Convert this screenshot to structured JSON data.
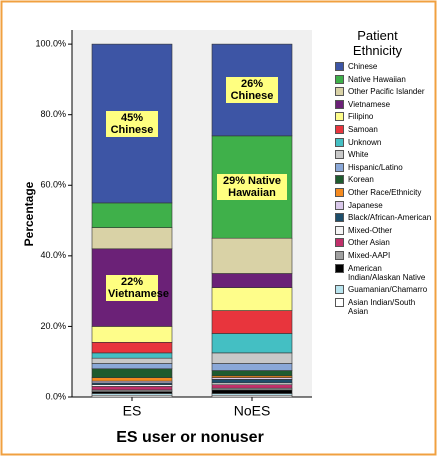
{
  "chart_data": {
    "type": "stacked_bar",
    "xlabel": "ES user or nonuser",
    "ylabel": "Percentage",
    "legend_title": "Patient Ethnicity",
    "legend_position": "right",
    "categories": [
      "ES",
      "NoES"
    ],
    "ylim": [
      0,
      104
    ],
    "yticks": [
      {
        "value": 0,
        "label": "0.0%"
      },
      {
        "value": 20,
        "label": "20.0%"
      },
      {
        "value": 40,
        "label": "40.0%"
      },
      {
        "value": 60,
        "label": "60.0%"
      },
      {
        "value": 80,
        "label": "80.0%"
      },
      {
        "value": 100,
        "label": "100.0%"
      }
    ],
    "series": [
      {
        "name": "Chinese",
        "color": "#3d55a5",
        "values": [
          45,
          26
        ],
        "value_labels": [
          "45% Chinese",
          "26% Chinese"
        ]
      },
      {
        "name": "Native Hawaiian",
        "color": "#3fb04a",
        "values": [
          7,
          29
        ],
        "value_labels": [
          null,
          "29% Native Hawaiian"
        ]
      },
      {
        "name": "Other Pacific Islander",
        "color": "#d9d2a6",
        "values": [
          6,
          10
        ]
      },
      {
        "name": "Vietnamese",
        "color": "#6b2177",
        "values": [
          22,
          4
        ],
        "value_labels": [
          "22% Vietnamese",
          null
        ]
      },
      {
        "name": "Filipino",
        "color": "#fefd8a",
        "values": [
          4.5,
          6.5
        ]
      },
      {
        "name": "Samoan",
        "color": "#e8353d",
        "values": [
          3,
          6.5
        ]
      },
      {
        "name": "Unknown",
        "color": "#44bfc3",
        "values": [
          1.5,
          5.5
        ]
      },
      {
        "name": "White",
        "color": "#c8c8c8",
        "values": [
          1.5,
          3
        ]
      },
      {
        "name": "Hispanic/Latino",
        "color": "#8aa8d8",
        "values": [
          1.5,
          2
        ]
      },
      {
        "name": "Korean",
        "color": "#1e5b2e",
        "values": [
          2.5,
          1.5
        ]
      },
      {
        "name": "Other Race/Ethnicity",
        "color": "#f58a1f",
        "values": [
          1,
          0.5
        ]
      },
      {
        "name": "Japanese",
        "color": "#d9c8ea",
        "values": [
          0.5,
          0.5
        ]
      },
      {
        "name": "Black/African-American",
        "color": "#1d4e6b",
        "values": [
          0.5,
          1
        ]
      },
      {
        "name": "Mixed-Other",
        "color": "#f5f5f5",
        "values": [
          0.5,
          0.5
        ]
      },
      {
        "name": "Other Asian",
        "color": "#c0306a",
        "values": [
          1,
          1
        ]
      },
      {
        "name": "Mixed-AAPI",
        "color": "#a0a0a0",
        "values": [
          0.5,
          0.5
        ]
      },
      {
        "name": "American Indian/Alaskan Native",
        "color": "#000000",
        "values": [
          0.5,
          1
        ]
      },
      {
        "name": "Guamanian/Chamarro",
        "color": "#b9e5ef",
        "values": [
          0.5,
          0.5
        ]
      },
      {
        "name": "Asian Indian/South Asian",
        "color": "#ffffff",
        "values": [
          0.5,
          0.5
        ]
      }
    ]
  }
}
